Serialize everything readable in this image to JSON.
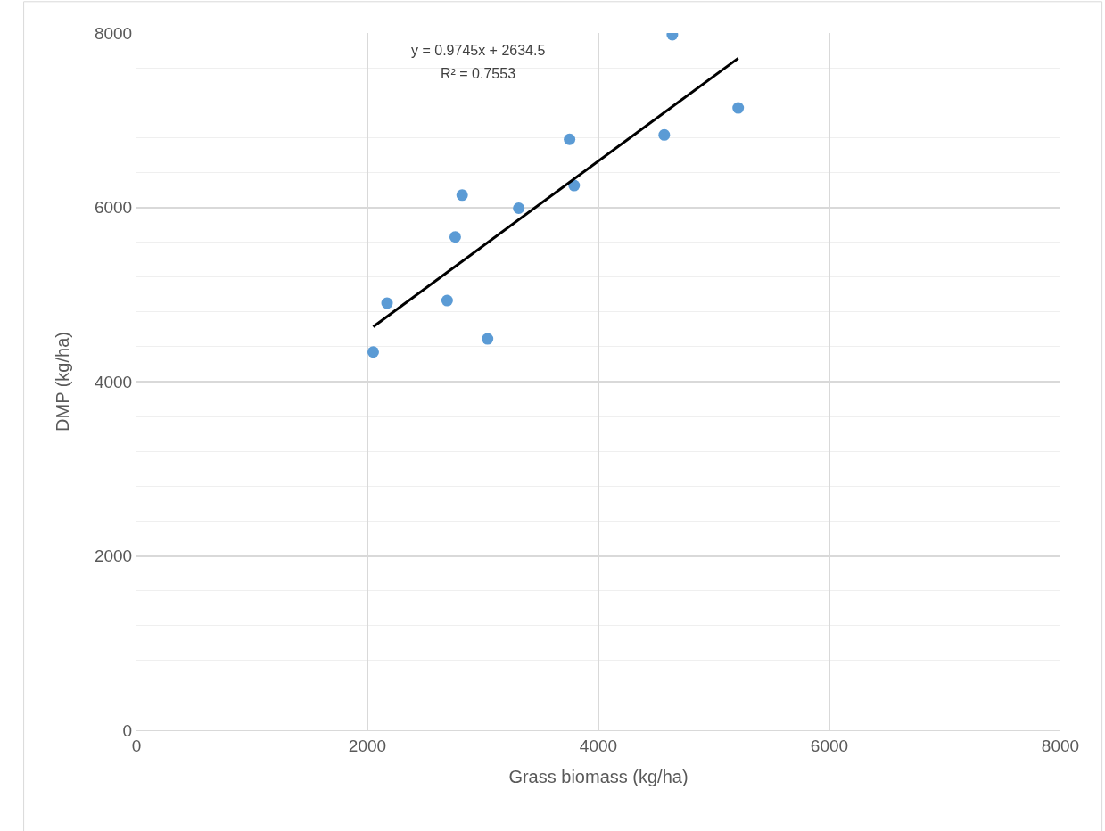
{
  "chart_data": {
    "type": "scatter",
    "xlabel": "Grass biomass (kg/ha)",
    "ylabel": "DMP (kg/ha)",
    "xlim": [
      0,
      8000
    ],
    "xticks": [
      0,
      2000,
      4000,
      6000,
      8000
    ],
    "ylim": [
      0,
      8000
    ],
    "yticks": [
      0,
      2000,
      4000,
      6000,
      8000
    ],
    "grid": true,
    "marker": "circle",
    "series": [
      {
        "color": "#5b9bd5",
        "x": [
          2050,
          2170,
          2690,
          2760,
          2820,
          3040,
          3310,
          3750,
          3790,
          4570,
          4640,
          5210
        ],
        "values": [
          4340,
          4900,
          4930,
          5660,
          6140,
          4490,
          5990,
          6780,
          6250,
          6830,
          7980,
          7140
        ]
      },
      {
        "type": "line",
        "color": "#000000",
        "x": [
          2050,
          5210
        ],
        "values": [
          4630,
          7710
        ],
        "marker": "none",
        "line_style": "solid"
      }
    ],
    "annotations": [
      "y = 0.9745x + 2634.5",
      "R² = 0.7553"
    ]
  }
}
